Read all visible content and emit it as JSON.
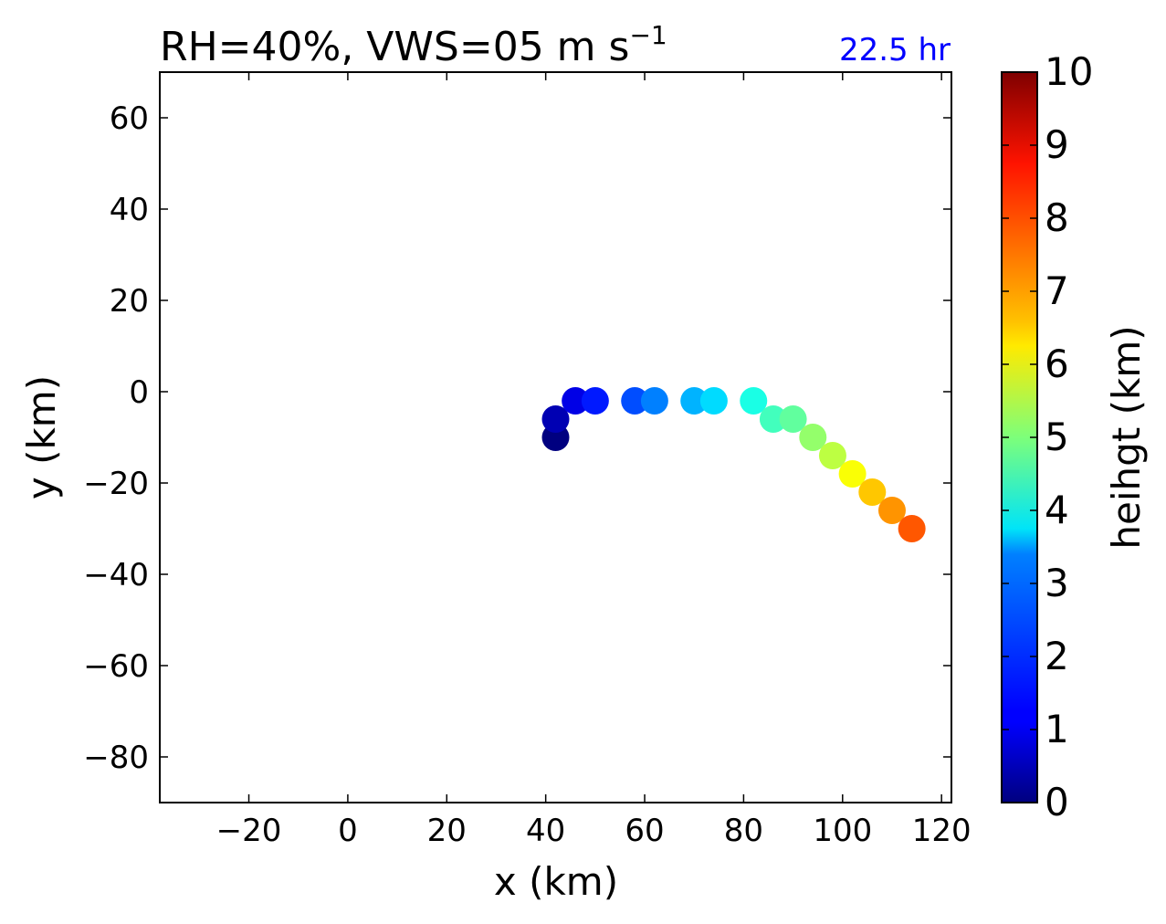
{
  "chart_data": {
    "type": "scatter",
    "title": "RH=40%, VWS=05 m s",
    "title_superscript": "−1",
    "time_label": "22.5 hr",
    "time_label_color": "#0000ff",
    "xlabel": "x (km)",
    "ylabel": "y (km)",
    "xlim": [
      -38,
      122
    ],
    "ylim": [
      -90,
      70
    ],
    "xticks": [
      -20,
      0,
      20,
      40,
      60,
      80,
      100,
      120
    ],
    "yticks": [
      -80,
      -60,
      -40,
      -20,
      0,
      20,
      40,
      60
    ],
    "grid": false,
    "colormap": "jet",
    "colorbar": {
      "label": "heihgt (km)",
      "min": 0,
      "max": 10,
      "ticks": [
        0,
        1,
        2,
        3,
        4,
        5,
        6,
        7,
        8,
        9,
        10
      ]
    },
    "points": [
      {
        "x": 42,
        "y": -10,
        "height": 0.0
      },
      {
        "x": 42,
        "y": -6,
        "height": 0.5
      },
      {
        "x": 46,
        "y": -2,
        "height": 1.0
      },
      {
        "x": 50,
        "y": -2,
        "height": 1.5
      },
      {
        "x": 58,
        "y": -2,
        "height": 2.0
      },
      {
        "x": 62,
        "y": -2,
        "height": 2.5
      },
      {
        "x": 70,
        "y": -2,
        "height": 3.0
      },
      {
        "x": 74,
        "y": -2,
        "height": 3.4
      },
      {
        "x": 82,
        "y": -2,
        "height": 4.0
      },
      {
        "x": 86,
        "y": -6,
        "height": 4.4
      },
      {
        "x": 90,
        "y": -6,
        "height": 4.7
      },
      {
        "x": 94,
        "y": -10,
        "height": 5.2
      },
      {
        "x": 98,
        "y": -14,
        "height": 5.6
      },
      {
        "x": 102,
        "y": -18,
        "height": 6.2
      },
      {
        "x": 106,
        "y": -22,
        "height": 6.8
      },
      {
        "x": 110,
        "y": -26,
        "height": 7.3
      },
      {
        "x": 114,
        "y": -30,
        "height": 7.9
      }
    ]
  }
}
